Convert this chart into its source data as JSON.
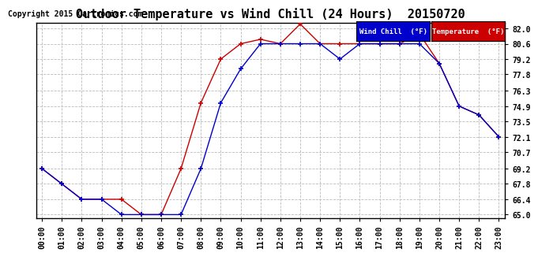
{
  "title": "Outdoor Temperature vs Wind Chill (24 Hours)  20150720",
  "copyright": "Copyright 2015 Cartronics.com",
  "hours": [
    "00:00",
    "01:00",
    "02:00",
    "03:00",
    "04:00",
    "05:00",
    "06:00",
    "07:00",
    "08:00",
    "09:00",
    "10:00",
    "11:00",
    "12:00",
    "13:00",
    "14:00",
    "15:00",
    "16:00",
    "17:00",
    "18:00",
    "19:00",
    "20:00",
    "21:00",
    "22:00",
    "23:00"
  ],
  "temperature": [
    69.2,
    67.8,
    66.4,
    66.4,
    66.4,
    65.0,
    65.0,
    69.2,
    75.2,
    79.2,
    80.6,
    81.0,
    80.6,
    82.4,
    80.6,
    80.6,
    80.6,
    80.6,
    80.6,
    81.5,
    78.8,
    74.9,
    74.1,
    72.1
  ],
  "wind_chill": [
    69.2,
    67.8,
    66.4,
    66.4,
    65.0,
    65.0,
    65.0,
    65.0,
    69.2,
    75.2,
    78.3,
    80.6,
    80.6,
    80.6,
    80.6,
    79.2,
    80.6,
    80.6,
    80.6,
    80.6,
    78.8,
    74.9,
    74.1,
    72.1
  ],
  "temp_color": "#cc0000",
  "wind_color": "#0000cc",
  "ylim_min": 65.0,
  "ylim_max": 82.0,
  "yticks": [
    65.0,
    66.4,
    67.8,
    69.2,
    70.7,
    72.1,
    73.5,
    74.9,
    76.3,
    77.8,
    79.2,
    80.6,
    82.0
  ],
  "bg_color": "#ffffff",
  "grid_color": "#bbbbbb",
  "title_fontsize": 11,
  "copyright_fontsize": 7,
  "tick_fontsize": 7,
  "legend_wind_label": "Wind Chill  (°F)",
  "legend_temp_label": "Temperature  (°F)"
}
